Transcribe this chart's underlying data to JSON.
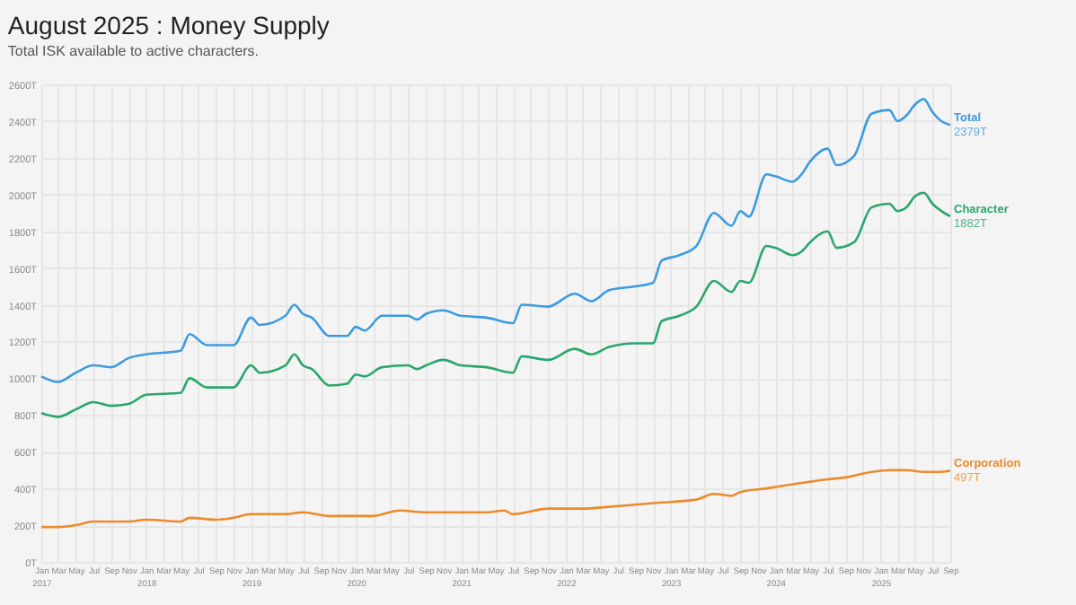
{
  "chart_data": {
    "type": "line",
    "title": "August 2025 : Money Supply",
    "subtitle": "Total ISK available to active characters.",
    "xlim": [
      "2017-01",
      "2025-09"
    ],
    "xticks": [
      {
        "value": "2017-01",
        "label": "Jan 2017"
      },
      {
        "value": "2017-03",
        "label": "Mar"
      },
      {
        "value": "2017-05",
        "label": "May"
      },
      {
        "value": "2017-07",
        "label": "Jul"
      },
      {
        "value": "2017-09",
        "label": "Sep"
      },
      {
        "value": "2017-11",
        "label": "Nov"
      },
      {
        "value": "2018-01",
        "label": "Jan 2018"
      },
      {
        "value": "2018-03",
        "label": "Mar"
      },
      {
        "value": "2018-05",
        "label": "May"
      },
      {
        "value": "2018-07",
        "label": "Jul"
      },
      {
        "value": "2018-09",
        "label": "Sep"
      },
      {
        "value": "2018-11",
        "label": "Nov"
      },
      {
        "value": "2019-01",
        "label": "Jan 2019"
      },
      {
        "value": "2019-03",
        "label": "Mar"
      },
      {
        "value": "2019-05",
        "label": "May"
      },
      {
        "value": "2019-07",
        "label": "Jul"
      },
      {
        "value": "2019-09",
        "label": "Sep"
      },
      {
        "value": "2019-11",
        "label": "Nov"
      },
      {
        "value": "2020-01",
        "label": "Jan 2020"
      },
      {
        "value": "2020-03",
        "label": "Mar"
      },
      {
        "value": "2020-05",
        "label": "May"
      },
      {
        "value": "2020-07",
        "label": "Jul"
      },
      {
        "value": "2020-09",
        "label": "Sep"
      },
      {
        "value": "2020-11",
        "label": "Nov"
      },
      {
        "value": "2021-01",
        "label": "Jan 2021"
      },
      {
        "value": "2021-03",
        "label": "Mar"
      },
      {
        "value": "2021-05",
        "label": "May"
      },
      {
        "value": "2021-07",
        "label": "Jul"
      },
      {
        "value": "2021-09",
        "label": "Sep"
      },
      {
        "value": "2021-11",
        "label": "Nov"
      },
      {
        "value": "2022-01",
        "label": "Jan 2022"
      },
      {
        "value": "2022-03",
        "label": "Mar"
      },
      {
        "value": "2022-05",
        "label": "May"
      },
      {
        "value": "2022-07",
        "label": "Jul"
      },
      {
        "value": "2022-09",
        "label": "Sep"
      },
      {
        "value": "2022-11",
        "label": "Nov"
      },
      {
        "value": "2023-01",
        "label": "Jan 2023"
      },
      {
        "value": "2023-03",
        "label": "Mar"
      },
      {
        "value": "2023-05",
        "label": "May"
      },
      {
        "value": "2023-07",
        "label": "Jul"
      },
      {
        "value": "2023-09",
        "label": "Sep"
      },
      {
        "value": "2023-11",
        "label": "Nov"
      },
      {
        "value": "2024-01",
        "label": "Jan 2024"
      },
      {
        "value": "2024-03",
        "label": "Mar"
      },
      {
        "value": "2024-05",
        "label": "May"
      },
      {
        "value": "2024-07",
        "label": "Jul"
      },
      {
        "value": "2024-09",
        "label": "Sep"
      },
      {
        "value": "2024-11",
        "label": "Nov"
      },
      {
        "value": "2025-01",
        "label": "Jan 2025"
      },
      {
        "value": "2025-03",
        "label": "Mar"
      },
      {
        "value": "2025-05",
        "label": "May"
      },
      {
        "value": "2025-07",
        "label": "Jul"
      },
      {
        "value": "2025-09",
        "label": "Sep"
      }
    ],
    "ylim": [
      0,
      2600
    ],
    "yticks": [
      {
        "value": 0,
        "label": "0T"
      },
      {
        "value": 200,
        "label": "200T"
      },
      {
        "value": 400,
        "label": "400T"
      },
      {
        "value": 600,
        "label": "600T"
      },
      {
        "value": 800,
        "label": "800T"
      },
      {
        "value": 1000,
        "label": "1000T"
      },
      {
        "value": 1200,
        "label": "1200T"
      },
      {
        "value": 1400,
        "label": "1400T"
      },
      {
        "value": 1600,
        "label": "1600T"
      },
      {
        "value": 1800,
        "label": "1800T"
      },
      {
        "value": 2000,
        "label": "2000T"
      },
      {
        "value": 2200,
        "label": "2200T"
      },
      {
        "value": 2400,
        "label": "2400T"
      },
      {
        "value": 2600,
        "label": "2600T"
      }
    ],
    "grid": true,
    "legend": false,
    "marker": "none",
    "line_style": "solid",
    "series": [
      {
        "name": "Total",
        "color": "#3d9be0",
        "x": [
          "2017-01",
          "2017-03",
          "2017-05",
          "2017-07",
          "2017-09",
          "2017-11",
          "2018-01",
          "2018-05",
          "2018-06",
          "2018-08",
          "2018-11",
          "2019-01",
          "2019-02",
          "2019-05",
          "2019-06",
          "2019-07",
          "2019-08",
          "2019-10",
          "2019-12",
          "2020-01",
          "2020-02",
          "2020-04",
          "2020-07",
          "2020-08",
          "2020-09",
          "2020-11",
          "2021-01",
          "2021-04",
          "2021-07",
          "2021-08",
          "2021-11",
          "2022-02",
          "2022-04",
          "2022-06",
          "2022-09",
          "2022-11",
          "2022-12",
          "2023-02",
          "2023-04",
          "2023-06",
          "2023-08",
          "2023-09",
          "2023-10",
          "2023-12",
          "2024-01",
          "2024-03",
          "2024-04",
          "2024-05",
          "2024-07",
          "2024-08",
          "2024-10",
          "2024-12",
          "2025-02",
          "2025-03",
          "2025-04",
          "2025-05",
          "2025-06",
          "2025-07",
          "2025-08",
          "2025-09"
        ],
        "values": [
          1010,
          980,
          1030,
          1070,
          1060,
          1110,
          1130,
          1150,
          1240,
          1180,
          1180,
          1330,
          1290,
          1340,
          1400,
          1350,
          1330,
          1230,
          1230,
          1280,
          1260,
          1340,
          1340,
          1320,
          1350,
          1370,
          1340,
          1330,
          1300,
          1400,
          1390,
          1460,
          1420,
          1480,
          1500,
          1520,
          1640,
          1670,
          1720,
          1900,
          1830,
          1910,
          1880,
          2110,
          2100,
          2070,
          2110,
          2180,
          2250,
          2160,
          2210,
          2440,
          2460,
          2400,
          2430,
          2490,
          2520,
          2450,
          2400,
          2379
        ],
        "value_labels": [
          null,
          null,
          null,
          null,
          null,
          null,
          null,
          null,
          null,
          null,
          null,
          null,
          null,
          null,
          null,
          null,
          null,
          null,
          null,
          null,
          null,
          null,
          null,
          null,
          null,
          null,
          null,
          null,
          null,
          null,
          null,
          null,
          null,
          null,
          null,
          null,
          null,
          null,
          null,
          null,
          null,
          null,
          null,
          null,
          null,
          null,
          null,
          null,
          null,
          null,
          null,
          null,
          null,
          null,
          null,
          null,
          null,
          null,
          null,
          "2379T"
        ]
      },
      {
        "name": "Character",
        "color": "#2ba66e",
        "x": [
          "2017-01",
          "2017-03",
          "2017-05",
          "2017-07",
          "2017-09",
          "2017-11",
          "2018-01",
          "2018-05",
          "2018-06",
          "2018-08",
          "2018-11",
          "2019-01",
          "2019-02",
          "2019-05",
          "2019-06",
          "2019-07",
          "2019-08",
          "2019-10",
          "2019-12",
          "2020-01",
          "2020-02",
          "2020-04",
          "2020-07",
          "2020-08",
          "2020-09",
          "2020-11",
          "2021-01",
          "2021-04",
          "2021-07",
          "2021-08",
          "2021-11",
          "2022-02",
          "2022-04",
          "2022-06",
          "2022-09",
          "2022-11",
          "2022-12",
          "2023-02",
          "2023-04",
          "2023-06",
          "2023-08",
          "2023-09",
          "2023-10",
          "2023-12",
          "2024-01",
          "2024-03",
          "2024-04",
          "2024-05",
          "2024-07",
          "2024-08",
          "2024-10",
          "2024-12",
          "2025-02",
          "2025-03",
          "2025-04",
          "2025-05",
          "2025-06",
          "2025-07",
          "2025-08",
          "2025-09"
        ],
        "values": [
          810,
          790,
          830,
          870,
          850,
          860,
          910,
          920,
          1000,
          950,
          950,
          1070,
          1030,
          1070,
          1130,
          1070,
          1050,
          960,
          970,
          1020,
          1010,
          1060,
          1070,
          1050,
          1070,
          1100,
          1070,
          1060,
          1030,
          1120,
          1100,
          1160,
          1130,
          1170,
          1190,
          1190,
          1310,
          1340,
          1390,
          1530,
          1470,
          1530,
          1520,
          1720,
          1710,
          1670,
          1690,
          1740,
          1800,
          1710,
          1740,
          1930,
          1950,
          1910,
          1930,
          1990,
          2010,
          1950,
          1910,
          1882
        ],
        "value_labels": [
          null,
          null,
          null,
          null,
          null,
          null,
          null,
          null,
          null,
          null,
          null,
          null,
          null,
          null,
          null,
          null,
          null,
          null,
          null,
          null,
          null,
          null,
          null,
          null,
          null,
          null,
          null,
          null,
          null,
          null,
          null,
          null,
          null,
          null,
          null,
          null,
          null,
          null,
          null,
          null,
          null,
          null,
          null,
          null,
          null,
          null,
          null,
          null,
          null,
          null,
          null,
          null,
          null,
          null,
          null,
          null,
          null,
          null,
          null,
          "1882T"
        ]
      },
      {
        "name": "Corporation",
        "color": "#ec8a2c",
        "x": [
          "2017-01",
          "2017-03",
          "2017-05",
          "2017-07",
          "2017-11",
          "2018-01",
          "2018-05",
          "2018-06",
          "2018-09",
          "2018-11",
          "2019-01",
          "2019-05",
          "2019-07",
          "2019-10",
          "2020-01",
          "2020-03",
          "2020-06",
          "2020-09",
          "2021-01",
          "2021-04",
          "2021-06",
          "2021-07",
          "2021-11",
          "2022-03",
          "2022-06",
          "2022-11",
          "2023-04",
          "2023-06",
          "2023-08",
          "2023-09",
          "2023-12",
          "2024-04",
          "2024-07",
          "2024-09",
          "2024-12",
          "2025-02",
          "2025-04",
          "2025-06",
          "2025-08",
          "2025-09"
        ],
        "values": [
          190,
          190,
          200,
          220,
          220,
          230,
          220,
          240,
          230,
          240,
          260,
          260,
          270,
          250,
          250,
          250,
          280,
          270,
          270,
          270,
          280,
          260,
          290,
          290,
          300,
          320,
          340,
          370,
          360,
          380,
          400,
          430,
          450,
          460,
          490,
          500,
          500,
          490,
          490,
          497
        ],
        "value_labels": [
          null,
          null,
          null,
          null,
          null,
          null,
          null,
          null,
          null,
          null,
          null,
          null,
          null,
          null,
          null,
          null,
          null,
          null,
          null,
          null,
          null,
          null,
          null,
          null,
          null,
          null,
          null,
          null,
          null,
          null,
          null,
          null,
          null,
          null,
          null,
          null,
          null,
          null,
          null,
          "497T"
        ]
      }
    ]
  }
}
